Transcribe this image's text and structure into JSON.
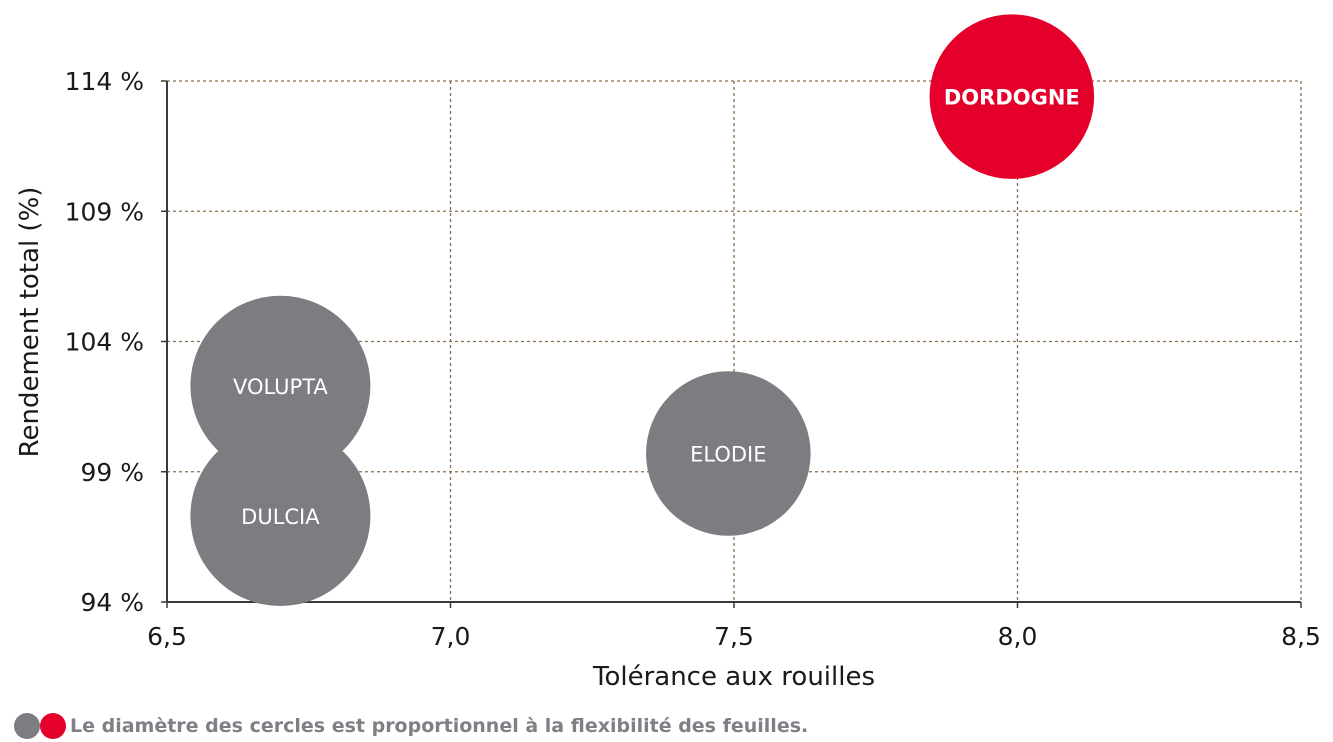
{
  "chart_data": {
    "type": "scatter",
    "xlabel": "Tolérance aux rouilles",
    "ylabel": "Rendement total (%)",
    "xlim": [
      6.5,
      8.5
    ],
    "ylim": [
      94,
      114
    ],
    "x_ticks": [
      "6,5",
      "7,0",
      "7,5",
      "8,0",
      "8,5"
    ],
    "y_ticks": [
      "94 %",
      "99 %",
      "104 %",
      "109 %",
      "114 %"
    ],
    "x_tick_values": [
      6.5,
      7.0,
      7.5,
      8.0,
      8.5
    ],
    "y_tick_values": [
      94,
      99,
      104,
      109,
      114
    ],
    "grid": true,
    "points": [
      {
        "label": "VOLUPTA",
        "x": 6.7,
        "y": 102.3,
        "size": 3.5,
        "color": "#7d7c81"
      },
      {
        "label": "DULCIA",
        "x": 6.7,
        "y": 97.3,
        "size": 3.5,
        "color": "#7d7c81"
      },
      {
        "label": "ELODIE",
        "x": 7.49,
        "y": 99.7,
        "size": 3.2,
        "color": "#7d7c81"
      },
      {
        "label": "DORDOGNE",
        "x": 7.99,
        "y": 113.4,
        "size": 3.2,
        "color": "#e4002b"
      }
    ]
  },
  "legend": {
    "text": "Le diamètre des cercles est proportionnel à la flexibilité des feuilles.",
    "colors": [
      "#7d7c81",
      "#e4002b"
    ]
  }
}
